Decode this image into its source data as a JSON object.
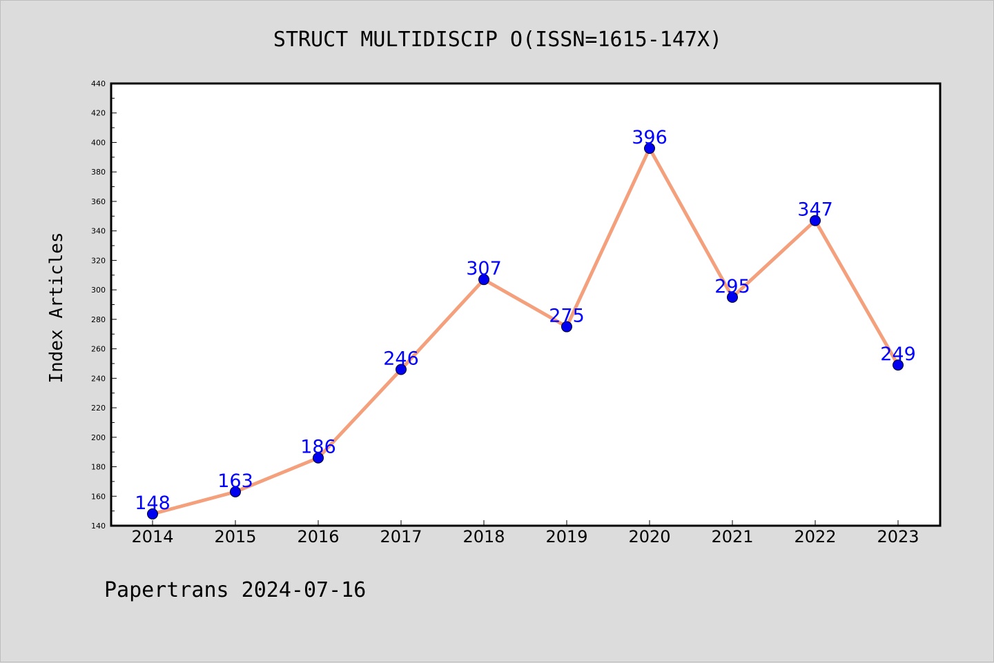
{
  "chart_data": {
    "type": "line",
    "title": "STRUCT MULTIDISCIP O(ISSN=1615-147X)",
    "xlabel": "",
    "ylabel": "Index Articles",
    "footer": "Papertrans 2024-07-16",
    "x": [
      "2014",
      "2015",
      "2016",
      "2017",
      "2018",
      "2019",
      "2020",
      "2021",
      "2022",
      "2023"
    ],
    "series": [
      {
        "values": [
          148,
          163,
          186,
          246,
          307,
          275,
          396,
          295,
          347,
          249
        ]
      }
    ],
    "ylim": [
      140,
      440
    ],
    "yticks": [
      140,
      160,
      180,
      200,
      220,
      240,
      260,
      280,
      300,
      320,
      340,
      360,
      380,
      400,
      420,
      440
    ],
    "data_labels": true,
    "grid": false,
    "legend": "none",
    "colors": {
      "line": "#f4a07c",
      "marker": "#0000ee",
      "label": "#0000ff",
      "plot_bg": "#ffffff",
      "figure_bg": "#dcdcdc"
    }
  }
}
